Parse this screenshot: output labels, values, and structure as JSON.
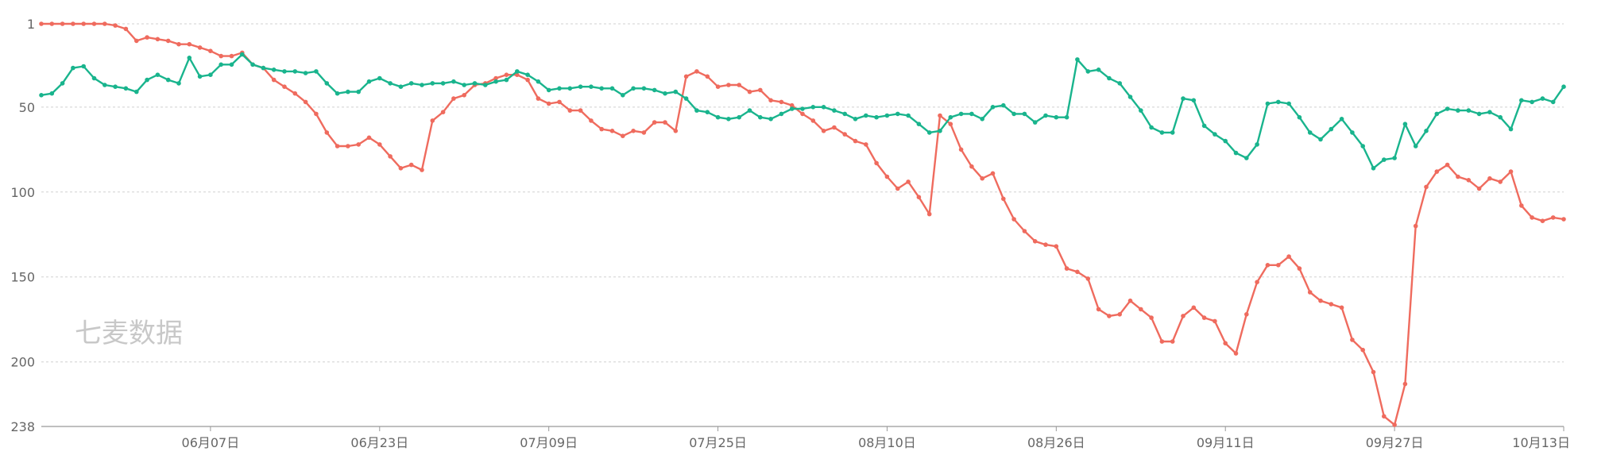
{
  "watermark": "七麦数据",
  "chart_data": {
    "type": "line",
    "y_inverted": true,
    "ylim": [
      1,
      238
    ],
    "y_ticks": [
      1,
      50,
      100,
      150,
      200,
      238
    ],
    "x_tick_labels": [
      "06月07日",
      "06月23日",
      "07月09日",
      "07月25日",
      "08月10日",
      "08月26日",
      "09月11日",
      "09月27日",
      "10月13日"
    ],
    "x_tick_index": [
      16,
      32,
      48,
      64,
      80,
      96,
      112,
      128,
      144
    ],
    "grid": true,
    "series": [
      {
        "color": "#ef6b5e",
        "values": [
          1,
          1,
          1,
          1,
          1,
          1,
          1,
          2,
          4,
          11,
          9,
          10,
          11,
          13,
          13,
          15,
          17,
          20,
          20,
          18,
          25,
          27,
          34,
          38,
          42,
          47,
          54,
          65,
          73,
          73,
          72,
          68,
          72,
          79,
          86,
          84,
          87,
          58,
          53,
          45,
          43,
          37,
          36,
          33,
          31,
          31,
          34,
          45,
          48,
          47,
          52,
          52,
          58,
          63,
          64,
          67,
          64,
          65,
          59,
          59,
          64,
          32,
          29,
          32,
          38,
          37,
          37,
          41,
          40,
          46,
          47,
          49,
          54,
          58,
          64,
          62,
          66,
          70,
          72,
          83,
          91,
          98,
          94,
          103,
          113,
          55,
          60,
          75,
          85,
          92,
          89,
          104,
          116,
          123,
          129,
          131,
          132,
          145,
          147,
          151,
          169,
          173,
          172,
          164,
          169,
          174,
          188,
          188,
          173,
          168,
          174,
          176,
          189,
          195,
          172,
          153,
          143,
          143,
          138,
          145,
          159,
          164,
          166,
          168,
          187,
          193,
          206,
          232,
          237,
          213,
          120,
          97,
          88,
          84,
          91,
          93,
          98,
          92,
          94,
          88,
          108,
          115,
          117,
          115,
          116
        ]
      },
      {
        "color": "#19b48d",
        "values": [
          43,
          42,
          36,
          27,
          26,
          33,
          37,
          38,
          39,
          41,
          34,
          31,
          34,
          36,
          21,
          32,
          31,
          25,
          25,
          19,
          25,
          27,
          28,
          29,
          29,
          30,
          29,
          36,
          42,
          41,
          41,
          35,
          33,
          36,
          38,
          36,
          37,
          36,
          36,
          35,
          37,
          36,
          37,
          35,
          34,
          29,
          31,
          35,
          40,
          39,
          39,
          38,
          38,
          39,
          39,
          43,
          39,
          39,
          40,
          42,
          41,
          45,
          52,
          53,
          56,
          57,
          56,
          52,
          56,
          57,
          54,
          51,
          51,
          50,
          50,
          52,
          54,
          57,
          55,
          56,
          55,
          54,
          55,
          60,
          65,
          64,
          56,
          54,
          54,
          57,
          50,
          49,
          54,
          54,
          59,
          55,
          56,
          56,
          22,
          29,
          28,
          33,
          36,
          44,
          52,
          62,
          65,
          65,
          45,
          46,
          61,
          66,
          70,
          77,
          80,
          72,
          48,
          47,
          48,
          56,
          65,
          69,
          63,
          57,
          65,
          73,
          86,
          81,
          80,
          60,
          73,
          64,
          54,
          51,
          52,
          52,
          54,
          53,
          56,
          63,
          46,
          47,
          45,
          47,
          38
        ]
      }
    ]
  }
}
